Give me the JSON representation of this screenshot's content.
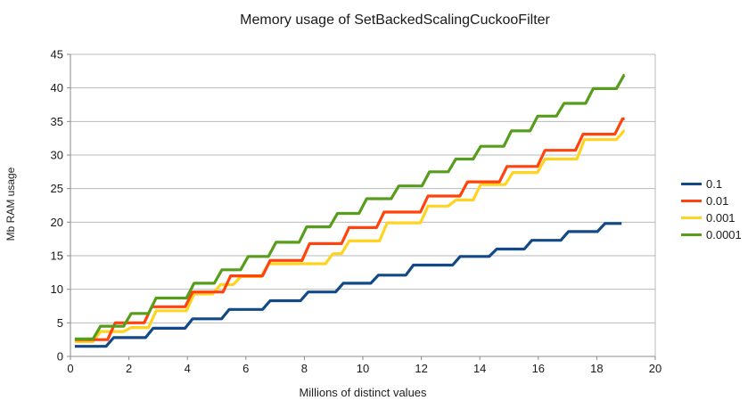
{
  "title": "Memory usage of SetBackedScalingCuckooFilter",
  "y_axis": {
    "title": "Mb RAM usage",
    "min": 0,
    "max": 45,
    "tick_step": 5,
    "tick_labels": [
      "0",
      "5",
      "10",
      "15",
      "20",
      "25",
      "30",
      "35",
      "40",
      "45"
    ]
  },
  "x_axis": {
    "title": "Millions of distinct values",
    "min": 0,
    "max": 20,
    "tick_step": 2,
    "tick_labels": [
      "0",
      "2",
      "4",
      "6",
      "8",
      "10",
      "12",
      "14",
      "16",
      "18",
      "20"
    ]
  },
  "legend": {
    "items": [
      {
        "label": "0.1",
        "color": "#134a86"
      },
      {
        "label": "0.01",
        "color": "#ff420e"
      },
      {
        "label": "0.001",
        "color": "#ffd320"
      },
      {
        "label": "0.0001",
        "color": "#579d1c"
      }
    ]
  },
  "chart_data": {
    "type": "line",
    "style": "step",
    "title": "Memory usage of SetBackedScalingCuckooFilter",
    "xlabel": "Millions of distinct values",
    "ylabel": "Mb RAM usage",
    "xlim": [
      0,
      20
    ],
    "ylim": [
      0,
      45
    ],
    "grid": "horizontal",
    "legend_position": "right",
    "series": [
      {
        "name": "0.1",
        "color": "#134a86",
        "x_end": 18.85,
        "steps": [
          [
            0.15,
            1.5
          ],
          [
            1.35,
            2.8
          ],
          [
            2.7,
            4.2
          ],
          [
            4.05,
            5.6
          ],
          [
            5.3,
            7.0
          ],
          [
            6.7,
            8.3
          ],
          [
            8.0,
            9.6
          ],
          [
            9.2,
            10.9
          ],
          [
            10.4,
            12.1
          ],
          [
            11.6,
            13.6
          ],
          [
            13.2,
            14.9
          ],
          [
            14.45,
            16.0
          ],
          [
            15.65,
            17.3
          ],
          [
            16.9,
            18.6
          ],
          [
            18.15,
            19.8
          ]
        ]
      },
      {
        "name": "0.01",
        "color": "#ff420e",
        "x_end": 18.95,
        "steps": [
          [
            0.15,
            2.5
          ],
          [
            1.4,
            5.0
          ],
          [
            2.65,
            7.4
          ],
          [
            4.05,
            9.6
          ],
          [
            5.35,
            12.0
          ],
          [
            6.7,
            14.3
          ],
          [
            8.05,
            16.8
          ],
          [
            9.4,
            19.2
          ],
          [
            10.6,
            21.5
          ],
          [
            12.1,
            23.9
          ],
          [
            13.45,
            26.0
          ],
          [
            14.8,
            28.3
          ],
          [
            16.1,
            30.7
          ],
          [
            17.4,
            33.1
          ],
          [
            18.75,
            35.4
          ]
        ]
      },
      {
        "name": "0.001",
        "color": "#ffd320",
        "x_end": 18.95,
        "steps": [
          [
            0.15,
            2.2
          ],
          [
            0.9,
            3.7
          ],
          [
            1.95,
            4.3
          ],
          [
            2.8,
            6.8
          ],
          [
            4.1,
            9.3
          ],
          [
            5.0,
            10.7
          ],
          [
            5.7,
            11.9
          ],
          [
            6.65,
            13.8
          ],
          [
            8.85,
            15.3
          ],
          [
            9.4,
            17.2
          ],
          [
            10.7,
            19.9
          ],
          [
            12.1,
            22.4
          ],
          [
            13.05,
            23.3
          ],
          [
            13.9,
            25.6
          ],
          [
            15.0,
            27.4
          ],
          [
            16.1,
            29.4
          ],
          [
            17.45,
            32.3
          ],
          [
            18.8,
            33.6
          ]
        ]
      },
      {
        "name": "0.0001",
        "color": "#579d1c",
        "x_end": 18.95,
        "steps": [
          [
            0.15,
            2.6
          ],
          [
            0.9,
            4.5
          ],
          [
            1.95,
            6.4
          ],
          [
            2.8,
            8.7
          ],
          [
            4.1,
            10.9
          ],
          [
            5.05,
            12.9
          ],
          [
            5.95,
            14.9
          ],
          [
            6.9,
            17.0
          ],
          [
            7.95,
            19.3
          ],
          [
            9.0,
            21.3
          ],
          [
            10.0,
            23.5
          ],
          [
            11.1,
            25.4
          ],
          [
            12.15,
            27.5
          ],
          [
            13.05,
            29.4
          ],
          [
            13.9,
            31.3
          ],
          [
            14.95,
            33.6
          ],
          [
            15.85,
            35.8
          ],
          [
            16.75,
            37.7
          ],
          [
            17.75,
            39.9
          ],
          [
            18.8,
            41.9
          ]
        ]
      }
    ]
  }
}
